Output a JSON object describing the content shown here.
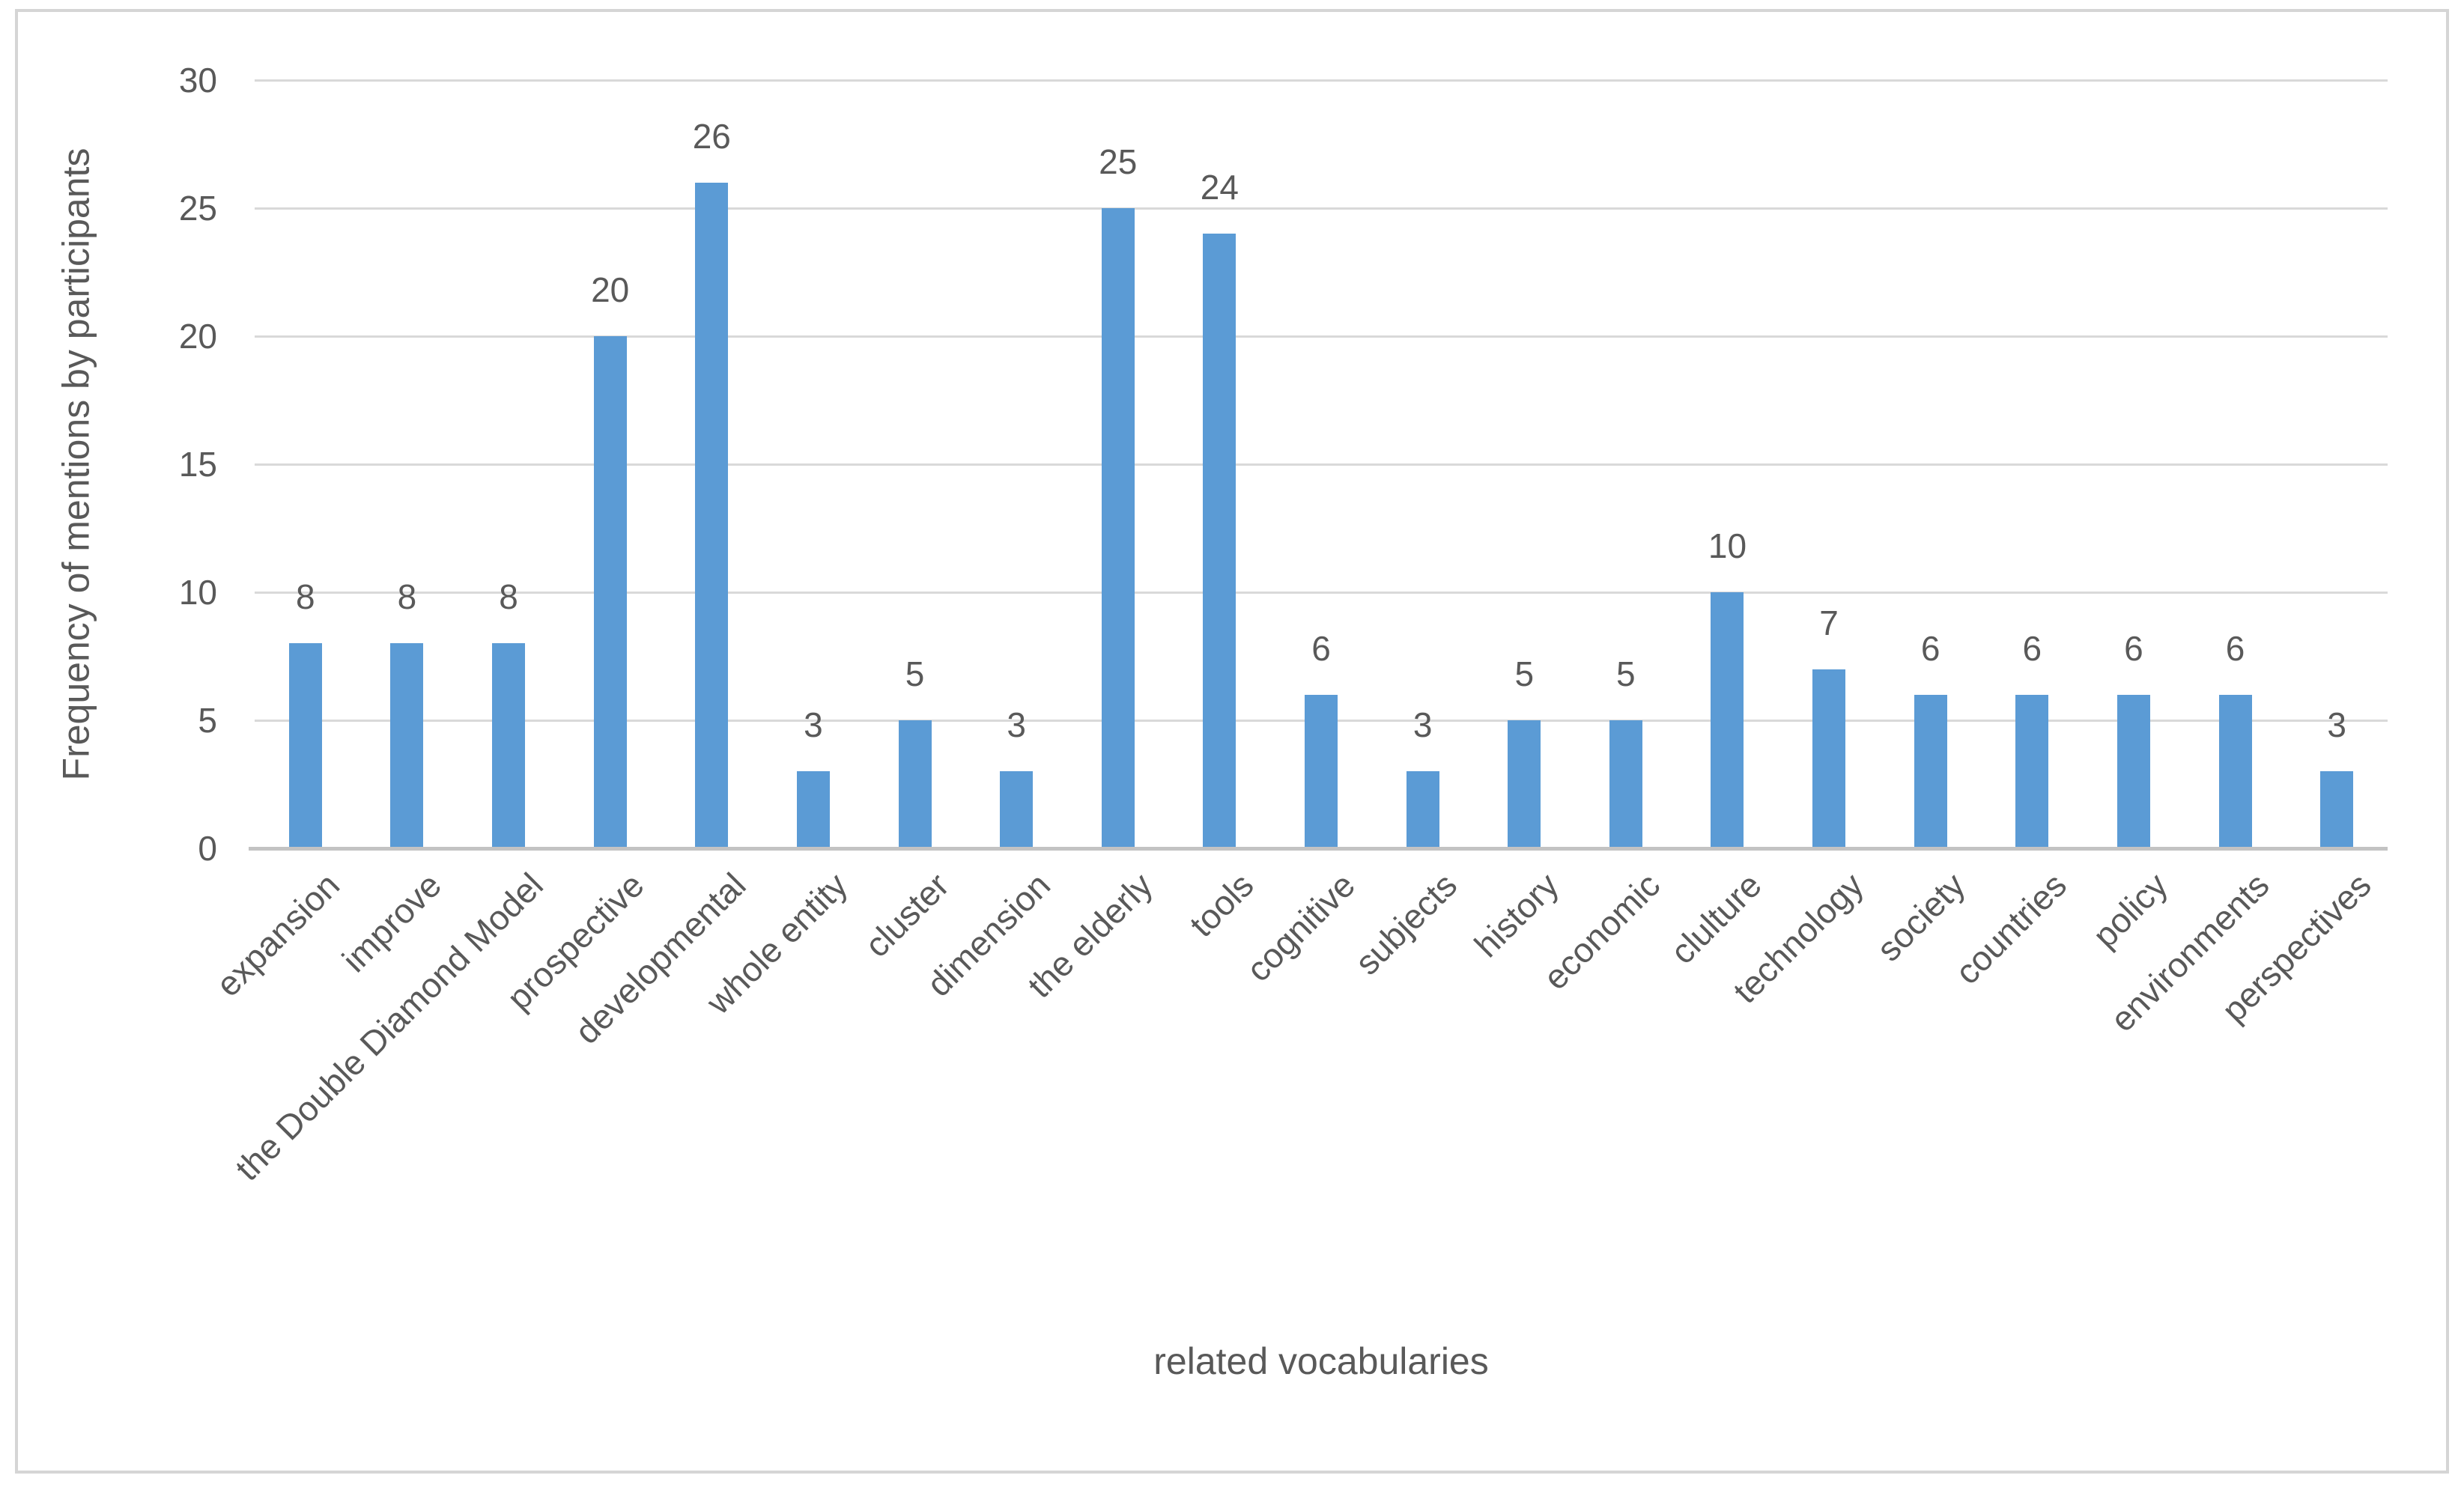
{
  "chart_data": {
    "type": "bar",
    "title": "",
    "xlabel": "related vocabularies",
    "ylabel": "Frequency of mentions by participants",
    "categories": [
      "expansion",
      "improve",
      "the Double Diamond Model",
      "prospective",
      "developmental",
      "whole entity",
      "cluster",
      "dimension",
      "the elderly",
      "tools",
      "cognitive",
      "subjects",
      "history",
      "economic",
      "clulture",
      "technology",
      "society",
      "countries",
      "policy",
      "environments",
      "perspectives"
    ],
    "values": [
      8,
      8,
      8,
      20,
      26,
      3,
      5,
      3,
      25,
      24,
      6,
      3,
      5,
      5,
      10,
      7,
      6,
      6,
      6,
      6,
      3
    ],
    "yticks": [
      0,
      5,
      10,
      15,
      20,
      25,
      30
    ],
    "ylim": [
      0,
      30
    ],
    "grid": true,
    "legend_position": "none",
    "data_labels": true,
    "colors": {
      "bar": "#5b9bd5",
      "gridline": "#d9d9d9",
      "axis_line": "#c3c3c3",
      "text": "#595959",
      "frame_border": "#d5d5d5",
      "background": "#ffffff"
    }
  }
}
